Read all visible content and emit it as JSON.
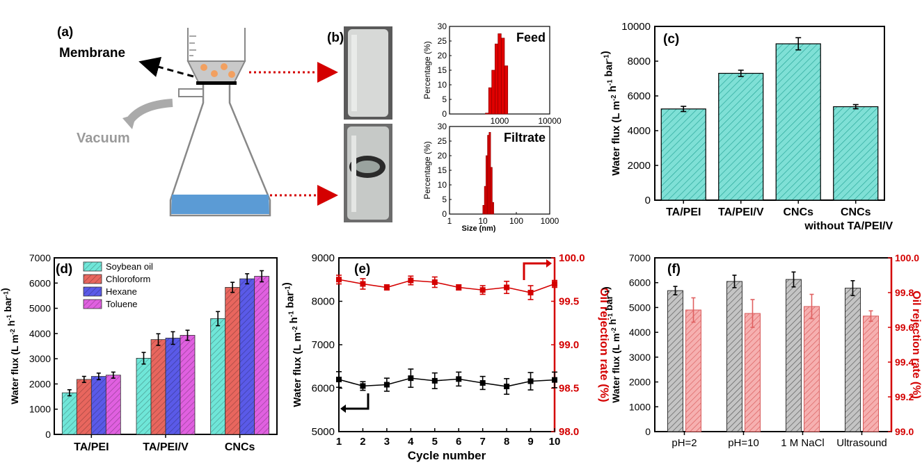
{
  "panel_a": {
    "label": "(a)",
    "membrane_label": "Membrane",
    "vacuum_label": "Vacuum"
  },
  "panel_b": {
    "label": "(b)"
  },
  "chart_data": [
    {
      "id": "b-feed",
      "type": "bar",
      "title": "Feed",
      "xlabel": "",
      "ylabel": "Percentage (%)",
      "x_scale": "log",
      "xlim": [
        100,
        10000
      ],
      "ylim": [
        0,
        30
      ],
      "xticks": [
        "1000",
        "10000"
      ],
      "yticks": [
        "0",
        "5",
        "10",
        "15",
        "20",
        "25",
        "30"
      ],
      "x": [
        560,
        650,
        750,
        870,
        1000,
        1160,
        1350
      ],
      "values": [
        0.3,
        9,
        15,
        24,
        27.5,
        26,
        16.5
      ]
    },
    {
      "id": "b-filtrate",
      "type": "bar",
      "title": "Filtrate",
      "xlabel": "Size (nm)",
      "ylabel": "Percentage (%)",
      "x_scale": "log",
      "xlim": [
        1,
        1000
      ],
      "ylim": [
        0,
        30
      ],
      "xticks": [
        "1",
        "10",
        "100",
        "1000"
      ],
      "yticks": [
        "0",
        "5",
        "10",
        "15",
        "20",
        "25",
        "30"
      ],
      "x": [
        10.5,
        11.7,
        13,
        14.5,
        16.1,
        18,
        20
      ],
      "values": [
        3,
        9.5,
        20,
        27,
        28,
        16,
        4
      ]
    },
    {
      "id": "c",
      "label": "(c)",
      "type": "bar",
      "xlabel": "",
      "ylabel": "Water flux (L m-2 h-1 bar-1)",
      "ylim": [
        0,
        10000
      ],
      "yticks": [
        "0",
        "2000",
        "4000",
        "6000",
        "8000",
        "10000"
      ],
      "categories": [
        "TA/PEI",
        "TA/PEI/V",
        "CNCs",
        "CNCs"
      ],
      "category_sublabels": [
        "",
        "",
        "",
        "without TA/PEI/V"
      ],
      "values": [
        5250,
        7300,
        9000,
        5380
      ],
      "errors": [
        150,
        180,
        350,
        120
      ],
      "colors": {
        "bar": "#7fe0d6",
        "hatch": "#2aa89a"
      }
    },
    {
      "id": "d",
      "label": "(d)",
      "type": "bar",
      "xlabel": "",
      "ylabel": "Water flux (L m-2 h-1 bar-1)",
      "ylim": [
        0,
        7000
      ],
      "yticks": [
        "0",
        "1000",
        "2000",
        "3000",
        "4000",
        "5000",
        "6000",
        "7000"
      ],
      "categories": [
        "TA/PEI",
        "TA/PEI/V",
        "CNCs"
      ],
      "legend": "top-left",
      "series": [
        {
          "name": "Soybean oil",
          "values": [
            1650,
            3020,
            4590
          ],
          "errors": [
            120,
            230,
            280
          ],
          "color": "#6fe6d8"
        },
        {
          "name": "Chloroform",
          "values": [
            2180,
            3760,
            5830
          ],
          "errors": [
            120,
            230,
            200
          ],
          "color": "#e8665e"
        },
        {
          "name": "Hexane",
          "values": [
            2300,
            3820,
            6170
          ],
          "errors": [
            130,
            250,
            200
          ],
          "color": "#5a5ae8"
        },
        {
          "name": "Toluene",
          "values": [
            2350,
            3930,
            6270
          ],
          "errors": [
            120,
            200,
            220
          ],
          "color": "#e060e0"
        }
      ]
    },
    {
      "id": "e",
      "label": "(e)",
      "type": "line",
      "xlabel": "Cycle number",
      "ylabel": "Water flux (L m-2 h-1 bar-1)",
      "y2label": "Oil rejection rate (%)",
      "x": [
        1,
        2,
        3,
        4,
        5,
        6,
        7,
        8,
        9,
        10
      ],
      "xlim": [
        1,
        10
      ],
      "ylim": [
        5000,
        9000
      ],
      "y2lim": [
        98.0,
        100.0
      ],
      "yticks": [
        "5000",
        "6000",
        "7000",
        "8000",
        "9000"
      ],
      "y2ticks": [
        "98.0",
        "98.5",
        "99.0",
        "99.5",
        "100.0"
      ],
      "series": [
        {
          "name": "",
          "axis": "left",
          "values": [
            6200,
            6050,
            6080,
            6230,
            6170,
            6210,
            6120,
            6040,
            6160,
            6190
          ],
          "errors": [
            180,
            100,
            150,
            210,
            180,
            160,
            150,
            180,
            200,
            180
          ],
          "color": "#000000"
        },
        {
          "name": "",
          "axis": "right",
          "values": [
            99.75,
            99.7,
            99.66,
            99.74,
            99.72,
            99.66,
            99.63,
            99.66,
            99.6,
            99.7
          ],
          "errors": [
            0.05,
            0.06,
            0.03,
            0.05,
            0.06,
            0.03,
            0.05,
            0.07,
            0.08,
            0.04
          ],
          "color": "#d40000"
        }
      ]
    },
    {
      "id": "f",
      "label": "(f)",
      "type": "bar",
      "xlabel": "",
      "ylabel": "Water flux (L m-2 h-1 bar-1)",
      "y2label": "Oil rejection rate (%)",
      "categories": [
        "pH=2",
        "pH=10",
        "1 M NaCl",
        "Ultrasound"
      ],
      "ylim": [
        0,
        7000
      ],
      "y2lim": [
        99.0,
        100.0
      ],
      "yticks": [
        "0",
        "1000",
        "2000",
        "3000",
        "4000",
        "5000",
        "6000",
        "7000"
      ],
      "y2ticks": [
        "99.0",
        "99.2",
        "99.4",
        "99.6",
        "99.8",
        "100.0"
      ],
      "series": [
        {
          "name": "",
          "axis": "left",
          "values": [
            5680,
            6050,
            6130,
            5780
          ],
          "errors": [
            170,
            250,
            300,
            300
          ],
          "color": "#b5b5b5"
        },
        {
          "name": "",
          "axis": "right",
          "values": [
            99.7,
            99.68,
            99.72,
            99.665
          ],
          "errors": [
            0.07,
            0.08,
            0.07,
            0.03
          ],
          "color": "#f4a3a3"
        }
      ]
    }
  ]
}
